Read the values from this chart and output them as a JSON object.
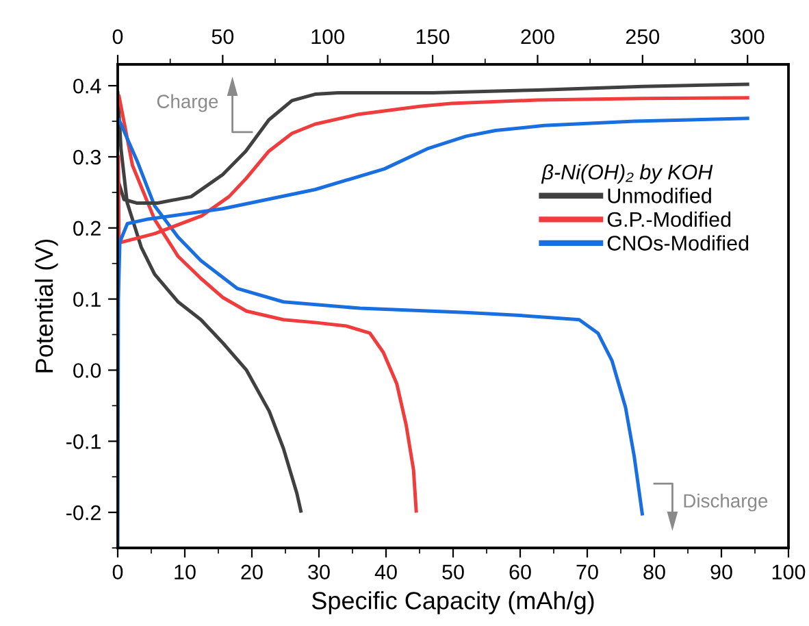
{
  "chart_data": {
    "type": "line",
    "xlabel": "Specific Capacity (mAh/g)",
    "ylabel": "Potential (V)",
    "legend_title": "β-Ni(OH)₂ by KOH",
    "legend": "right",
    "grid": false,
    "marker": "none",
    "line_style": "solid",
    "xlim": [
      0,
      100
    ],
    "xticks": [
      0,
      10,
      20,
      30,
      40,
      50,
      60,
      70,
      80,
      90,
      100
    ],
    "x2lim": [
      0,
      319.5
    ],
    "x2ticks": [
      0,
      50,
      100,
      150,
      200,
      250,
      300
    ],
    "ylim": [
      -0.25,
      0.43
    ],
    "yticks": [
      -0.2,
      -0.1,
      {
        "value": 0,
        "label": "0.0"
      },
      0.1,
      0.2,
      0.3,
      0.4
    ],
    "annotations": [
      "Charge",
      "Discharge"
    ],
    "series": [
      {
        "name": "Unmodified",
        "color": "#404040",
        "axis": "x2",
        "x": [
          0.5,
          3,
          9,
          19,
          35,
          50,
          61,
          72,
          83,
          94,
          105,
          150,
          200,
          250,
          300
        ],
        "values": [
          0.263,
          0.24,
          0.235,
          0.235,
          0.244,
          0.275,
          0.308,
          0.352,
          0.379,
          0.388,
          0.39,
          0.39,
          0.394,
          0.399,
          0.402
        ]
      },
      {
        "name": "G.P.-Modified",
        "color": "#f03c3c",
        "axis": "x2",
        "x": [
          0.3,
          0.6,
          17.6,
          40,
          53,
          61,
          72,
          83,
          94,
          115,
          144,
          159,
          200,
          250,
          300
        ],
        "values": [
          0.3,
          0.179,
          0.192,
          0.217,
          0.244,
          0.269,
          0.308,
          0.333,
          0.346,
          0.36,
          0.371,
          0.375,
          0.38,
          0.382,
          0.383
        ]
      },
      {
        "name": "CNOs-Modified",
        "color": "#1a6fe0",
        "axis": "x2",
        "x": [
          0,
          0.3,
          1,
          4.6,
          13.7,
          50,
          94,
          127,
          148,
          166,
          180,
          203,
          246,
          300
        ],
        "values": [
          -0.25,
          0.1,
          0.18,
          0.206,
          0.212,
          0.227,
          0.254,
          0.283,
          0.312,
          0.329,
          0.337,
          0.344,
          0.35,
          0.354
        ]
      },
      {
        "color": "#404040",
        "x": [
          0,
          0.5,
          1.4,
          3.5,
          5.5,
          9,
          12.4,
          15.7,
          19.2,
          22.6,
          24.7,
          26.7,
          27.3
        ],
        "values": [
          0.39,
          0.31,
          0.236,
          0.173,
          0.135,
          0.096,
          0.071,
          0.038,
          0,
          -0.058,
          -0.11,
          -0.173,
          -0.198
        ]
      },
      {
        "color": "#f03c3c",
        "x": [
          0.2,
          2.2,
          5.5,
          9,
          12.4,
          15.7,
          19.2,
          24.7,
          29.4,
          34.1,
          37.6,
          39.6,
          41.6,
          43,
          44.1,
          44.5
        ],
        "values": [
          0.385,
          0.288,
          0.212,
          0.16,
          0.129,
          0.102,
          0.083,
          0.071,
          0.067,
          0.062,
          0.052,
          0.025,
          -0.019,
          -0.077,
          -0.14,
          -0.198
        ]
      },
      {
        "color": "#1a6fe0",
        "x": [
          0.2,
          2.9,
          5.5,
          9,
          12.4,
          17.8,
          24.7,
          36.1,
          51.8,
          60,
          68.8,
          71.6,
          73.7,
          75.7,
          77,
          78.2
        ],
        "values": [
          0.352,
          0.294,
          0.231,
          0.187,
          0.154,
          0.115,
          0.096,
          0.087,
          0.081,
          0.077,
          0.071,
          0.052,
          0.013,
          -0.052,
          -0.121,
          -0.202
        ]
      }
    ]
  }
}
